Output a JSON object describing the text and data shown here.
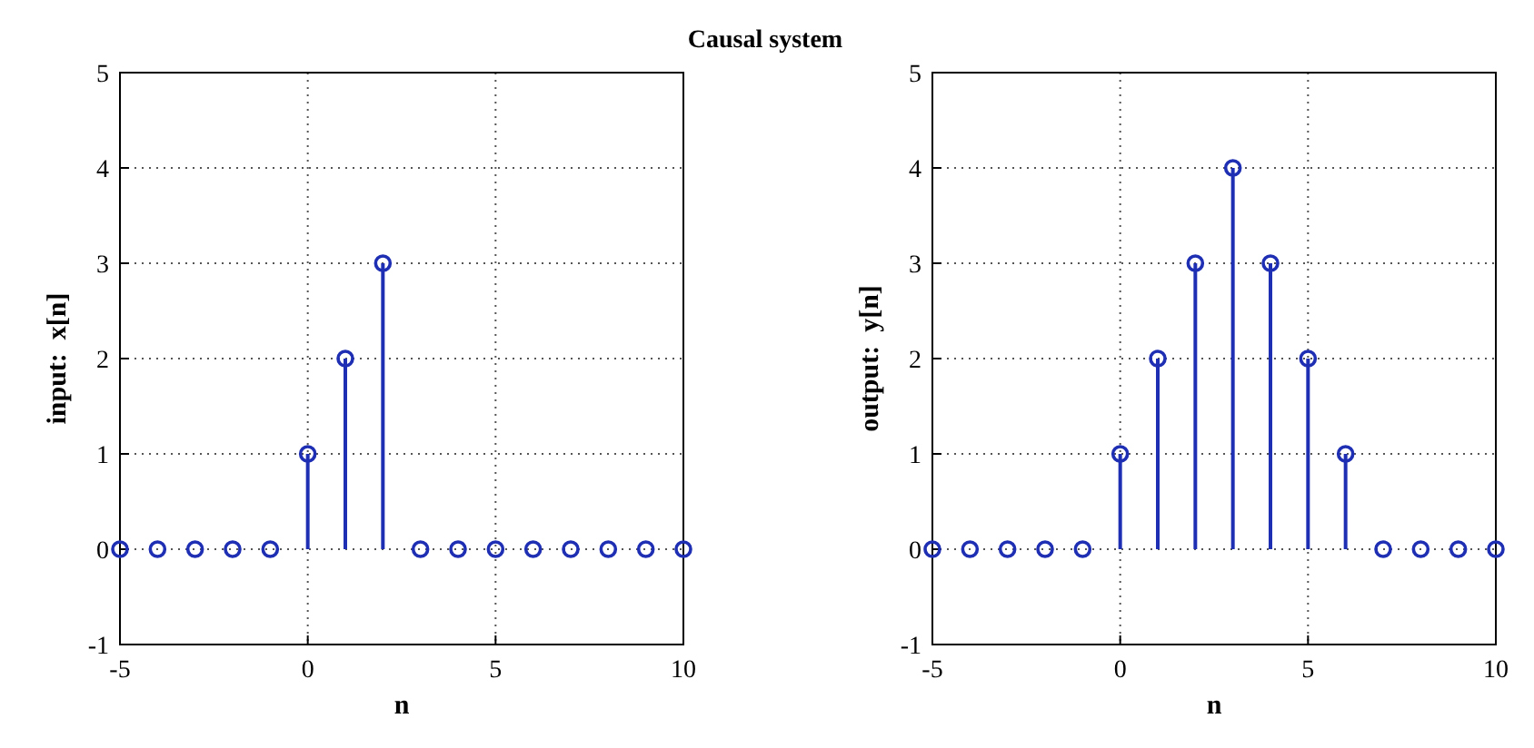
{
  "chart_data": [
    {
      "type": "lollipop",
      "title": "Causal system",
      "xlabel": "n",
      "ylabel": "input:  x[n]",
      "x": [
        -5,
        -4,
        -3,
        -2,
        -1,
        0,
        1,
        2,
        3,
        4,
        5,
        6,
        7,
        8,
        9,
        10
      ],
      "series": [
        {
          "color": "#1f2fb4",
          "values": [
            0,
            0,
            0,
            0,
            0,
            1,
            2,
            3,
            0,
            0,
            0,
            0,
            0,
            0,
            0,
            0
          ]
        }
      ],
      "xlim": [
        -5,
        10
      ],
      "ylim": [
        -1,
        5
      ],
      "xticks": [
        -5,
        0,
        5,
        10
      ],
      "yticks": [
        -1,
        0,
        1,
        2,
        3,
        4,
        5
      ],
      "grid": true,
      "marker": "circle"
    },
    {
      "type": "lollipop",
      "xlabel": "n",
      "ylabel": "output:  y[n]",
      "x": [
        -5,
        -4,
        -3,
        -2,
        -1,
        0,
        1,
        2,
        3,
        4,
        5,
        6,
        7,
        8,
        9,
        10
      ],
      "series": [
        {
          "color": "#1f2fb4",
          "values": [
            0,
            0,
            0,
            0,
            0,
            1,
            2,
            3,
            4,
            3,
            2,
            1,
            0,
            0,
            0,
            0
          ]
        }
      ],
      "xlim": [
        -5,
        10
      ],
      "ylim": [
        -1,
        5
      ],
      "xticks": [
        -5,
        0,
        5,
        10
      ],
      "yticks": [
        -1,
        0,
        1,
        2,
        3,
        4,
        5
      ],
      "grid": true,
      "marker": "circle"
    }
  ]
}
